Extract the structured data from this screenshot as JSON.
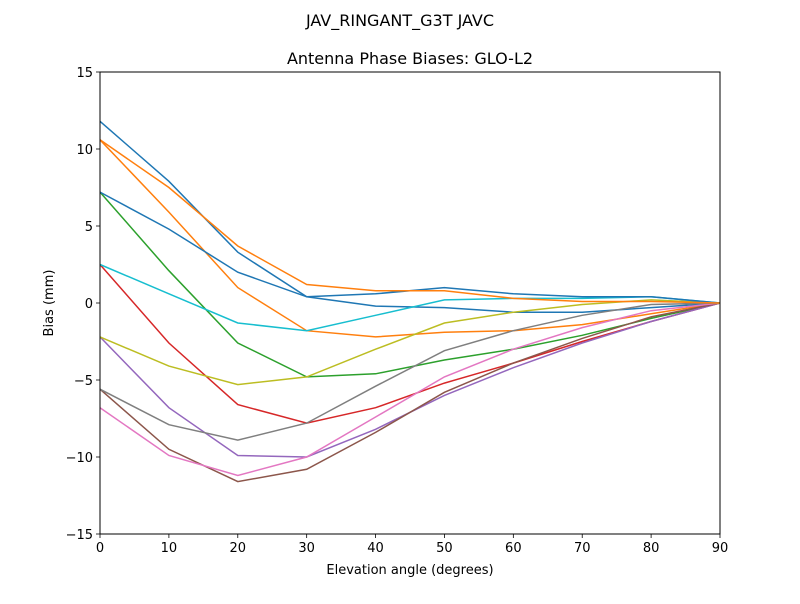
{
  "figure": {
    "suptitle": "JAV_RINGANT_G3T JAVC"
  },
  "chart_data": {
    "type": "line",
    "title": "Antenna Phase Biases: GLO-L2",
    "xlabel": "Elevation angle (degrees)",
    "ylabel": "Bias (mm)",
    "xlim": [
      0,
      90
    ],
    "ylim": [
      -15,
      15
    ],
    "xticks": [
      0,
      10,
      20,
      30,
      40,
      50,
      60,
      70,
      80,
      90
    ],
    "yticks": [
      -15,
      -10,
      -5,
      0,
      5,
      10,
      15
    ],
    "grid": false,
    "legend": "none",
    "colors": [
      "#1f77b4",
      "#ff7f0e",
      "#2ca02c",
      "#d62728",
      "#9467bd",
      "#8c564b",
      "#e377c2",
      "#7f7f7f",
      "#bcbd22",
      "#17becf"
    ],
    "x": [
      0,
      10,
      20,
      30,
      40,
      50,
      60,
      70,
      80,
      90
    ],
    "series": [
      {
        "values": [
          11.8,
          7.9,
          3.3,
          0.4,
          -0.2,
          -0.3,
          -0.6,
          -0.6,
          -0.3,
          0
        ]
      },
      {
        "values": [
          10.6,
          5.9,
          1.0,
          -1.8,
          -2.2,
          -1.9,
          -1.8,
          -1.4,
          -0.7,
          0
        ]
      },
      {
        "values": [
          7.2,
          2.1,
          -2.6,
          -4.8,
          -4.6,
          -3.7,
          -3.0,
          -2.1,
          -1.0,
          0
        ]
      },
      {
        "values": [
          2.5,
          -2.6,
          -6.6,
          -7.8,
          -6.8,
          -5.2,
          -3.9,
          -2.5,
          -1.2,
          0
        ]
      },
      {
        "values": [
          -2.2,
          -6.8,
          -9.9,
          -10.0,
          -8.2,
          -6.0,
          -4.2,
          -2.6,
          -1.2,
          0
        ]
      },
      {
        "values": [
          -5.6,
          -9.5,
          -11.6,
          -10.8,
          -8.4,
          -5.8,
          -3.9,
          -2.3,
          -0.9,
          0
        ]
      },
      {
        "values": [
          -6.8,
          -9.9,
          -11.2,
          -10.0,
          -7.4,
          -4.8,
          -3.0,
          -1.6,
          -0.5,
          0
        ]
      },
      {
        "values": [
          -5.6,
          -7.9,
          -8.9,
          -7.8,
          -5.4,
          -3.1,
          -1.8,
          -0.8,
          -0.1,
          0
        ]
      },
      {
        "values": [
          -2.2,
          -4.1,
          -5.3,
          -4.8,
          -3.0,
          -1.3,
          -0.6,
          -0.1,
          0.2,
          0
        ]
      },
      {
        "values": [
          2.5,
          0.6,
          -1.3,
          -1.8,
          -0.8,
          0.2,
          0.3,
          0.3,
          0.4,
          0
        ]
      },
      {
        "values": [
          7.2,
          4.8,
          2.0,
          0.4,
          0.6,
          1.0,
          0.6,
          0.4,
          0.4,
          0
        ]
      },
      {
        "values": [
          10.6,
          7.5,
          3.7,
          1.2,
          0.8,
          0.8,
          0.3,
          0.1,
          0.1,
          0
        ]
      }
    ]
  }
}
